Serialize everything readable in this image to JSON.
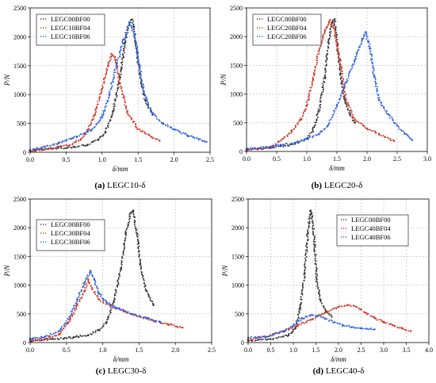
{
  "chart_data": [
    {
      "type": "scatter",
      "caption": "(a) LEGC10-δ",
      "caption_bold": "(a)",
      "caption_rest": "LEGC10-δ",
      "xlabel": "δ/mm",
      "ylabel": "P/N",
      "xlim": [
        0,
        2.5
      ],
      "ylim": [
        0,
        2500
      ],
      "xticks": [
        "0.0",
        "0.5",
        "1.0",
        "1.5",
        "2.0",
        "2.5"
      ],
      "yticks": [
        "0",
        "500",
        "1000",
        "1500",
        "2000",
        "2500"
      ],
      "grid": true,
      "legend_position": "top-left",
      "series": [
        {
          "name": "LEGC00BF00",
          "color": "#333333",
          "points": [
            [
              0,
              30
            ],
            [
              0.3,
              60
            ],
            [
              0.6,
              90
            ],
            [
              0.8,
              130
            ],
            [
              0.95,
              220
            ],
            [
              1.05,
              350
            ],
            [
              1.15,
              700
            ],
            [
              1.25,
              1300
            ],
            [
              1.32,
              1900
            ],
            [
              1.38,
              2250
            ],
            [
              1.42,
              2300
            ],
            [
              1.47,
              1900
            ],
            [
              1.52,
              1350
            ],
            [
              1.6,
              900
            ],
            [
              1.7,
              650
            ]
          ]
        },
        {
          "name": "LEGC10BF04",
          "color": "#d23b2a",
          "points": [
            [
              0,
              20
            ],
            [
              0.3,
              70
            ],
            [
              0.55,
              120
            ],
            [
              0.7,
              220
            ],
            [
              0.8,
              380
            ],
            [
              0.9,
              650
            ],
            [
              1.0,
              1100
            ],
            [
              1.08,
              1500
            ],
            [
              1.13,
              1700
            ],
            [
              1.18,
              1650
            ],
            [
              1.25,
              1200
            ],
            [
              1.35,
              700
            ],
            [
              1.5,
              400
            ],
            [
              1.65,
              300
            ],
            [
              1.8,
              200
            ]
          ]
        },
        {
          "name": "LEGC10BF06",
          "color": "#2a5fe0",
          "points": [
            [
              0,
              40
            ],
            [
              0.2,
              90
            ],
            [
              0.4,
              160
            ],
            [
              0.6,
              250
            ],
            [
              0.75,
              320
            ],
            [
              0.85,
              380
            ],
            [
              1.0,
              600
            ],
            [
              1.1,
              1000
            ],
            [
              1.2,
              1500
            ],
            [
              1.3,
              1950
            ],
            [
              1.38,
              2250
            ],
            [
              1.45,
              2050
            ],
            [
              1.5,
              1650
            ],
            [
              1.58,
              1050
            ],
            [
              1.68,
              700
            ],
            [
              1.85,
              500
            ],
            [
              2.0,
              400
            ],
            [
              2.2,
              280
            ],
            [
              2.45,
              180
            ]
          ]
        }
      ]
    },
    {
      "type": "scatter",
      "caption": "(b) LEGC20-δ",
      "caption_bold": "(b)",
      "caption_rest": "LEGC20-δ",
      "xlabel": "δ/mm",
      "ylabel": "P/N",
      "xlim": [
        0,
        3.0
      ],
      "ylim": [
        0,
        2500
      ],
      "xticks": [
        "0.0",
        "0.5",
        "1.0",
        "1.5",
        "2.0",
        "2.5",
        "3.0"
      ],
      "yticks": [
        "0",
        "500",
        "1000",
        "1500",
        "2000",
        "2500"
      ],
      "grid": true,
      "legend_position": "top-left",
      "series": [
        {
          "name": "LEGC00BF00",
          "color": "#333333",
          "points": [
            [
              0,
              30
            ],
            [
              0.4,
              60
            ],
            [
              0.8,
              130
            ],
            [
              1.0,
              220
            ],
            [
              1.1,
              350
            ],
            [
              1.2,
              700
            ],
            [
              1.3,
              1300
            ],
            [
              1.36,
              1900
            ],
            [
              1.42,
              2250
            ],
            [
              1.46,
              2300
            ],
            [
              1.5,
              1900
            ],
            [
              1.56,
              1350
            ],
            [
              1.63,
              900
            ],
            [
              1.72,
              650
            ],
            [
              1.8,
              500
            ]
          ]
        },
        {
          "name": "LEGC20BF04",
          "color": "#d23b2a",
          "points": [
            [
              0,
              20
            ],
            [
              0.4,
              80
            ],
            [
              0.6,
              220
            ],
            [
              0.75,
              350
            ],
            [
              0.9,
              550
            ],
            [
              1.0,
              800
            ],
            [
              1.1,
              1250
            ],
            [
              1.2,
              1750
            ],
            [
              1.3,
              2100
            ],
            [
              1.38,
              2280
            ],
            [
              1.45,
              2150
            ],
            [
              1.55,
              1600
            ],
            [
              1.65,
              900
            ],
            [
              1.8,
              550
            ],
            [
              2.0,
              400
            ],
            [
              2.2,
              300
            ],
            [
              2.45,
              180
            ]
          ]
        },
        {
          "name": "LEGC20BF06",
          "color": "#2a5fe0",
          "points": [
            [
              0,
              40
            ],
            [
              0.4,
              80
            ],
            [
              0.8,
              150
            ],
            [
              1.0,
              220
            ],
            [
              1.2,
              300
            ],
            [
              1.35,
              450
            ],
            [
              1.5,
              800
            ],
            [
              1.65,
              1200
            ],
            [
              1.8,
              1600
            ],
            [
              1.92,
              1950
            ],
            [
              1.98,
              2080
            ],
            [
              2.05,
              1800
            ],
            [
              2.12,
              1300
            ],
            [
              2.2,
              900
            ],
            [
              2.35,
              650
            ],
            [
              2.5,
              450
            ],
            [
              2.65,
              300
            ],
            [
              2.75,
              200
            ]
          ]
        }
      ]
    },
    {
      "type": "scatter",
      "caption": "(c) LEGC30-δ",
      "caption_bold": "(c)",
      "caption_rest": "LEGC30-δ",
      "xlabel": "δ/mm",
      "ylabel": "P/N",
      "xlim": [
        0,
        2.5
      ],
      "ylim": [
        0,
        2500
      ],
      "xticks": [
        "0.0",
        "0.5",
        "1.0",
        "1.5",
        "2.0",
        "2.5"
      ],
      "yticks": [
        "0",
        "500",
        "1000",
        "1500",
        "2000",
        "2500"
      ],
      "grid": true,
      "legend_position": "top-left",
      "series": [
        {
          "name": "LEGC00BF00",
          "color": "#333333",
          "points": [
            [
              0,
              30
            ],
            [
              0.3,
              60
            ],
            [
              0.6,
              90
            ],
            [
              0.8,
              130
            ],
            [
              0.95,
              220
            ],
            [
              1.05,
              350
            ],
            [
              1.15,
              700
            ],
            [
              1.25,
              1300
            ],
            [
              1.32,
              1900
            ],
            [
              1.38,
              2250
            ],
            [
              1.42,
              2300
            ],
            [
              1.47,
              1900
            ],
            [
              1.52,
              1350
            ],
            [
              1.6,
              900
            ],
            [
              1.7,
              650
            ]
          ]
        },
        {
          "name": "LEGC30BF04",
          "color": "#d23b2a",
          "points": [
            [
              0,
              30
            ],
            [
              0.2,
              60
            ],
            [
              0.4,
              150
            ],
            [
              0.55,
              400
            ],
            [
              0.65,
              650
            ],
            [
              0.75,
              900
            ],
            [
              0.8,
              1100
            ],
            [
              0.85,
              950
            ],
            [
              0.95,
              750
            ],
            [
              1.1,
              650
            ],
            [
              1.3,
              550
            ],
            [
              1.5,
              450
            ],
            [
              1.7,
              380
            ],
            [
              1.9,
              320
            ],
            [
              2.1,
              260
            ]
          ]
        },
        {
          "name": "LEGC30BF06",
          "color": "#2a5fe0",
          "points": [
            [
              0,
              60
            ],
            [
              0.2,
              100
            ],
            [
              0.4,
              200
            ],
            [
              0.55,
              450
            ],
            [
              0.65,
              750
            ],
            [
              0.75,
              1050
            ],
            [
              0.83,
              1250
            ],
            [
              0.88,
              1100
            ],
            [
              0.95,
              850
            ],
            [
              1.05,
              700
            ],
            [
              1.2,
              600
            ],
            [
              1.4,
              500
            ],
            [
              1.6,
              430
            ],
            [
              1.8,
              350
            ]
          ]
        }
      ]
    },
    {
      "type": "scatter",
      "caption": "(d) LEGC40-δ",
      "caption_bold": "(d)",
      "caption_rest": "LEGC40-δ",
      "xlabel": "δ/mm",
      "ylabel": "P/N",
      "xlim": [
        0,
        4.0
      ],
      "ylim": [
        0,
        2500
      ],
      "xticks": [
        "0.0",
        "0.5",
        "1.0",
        "1.5",
        "2.0",
        "2.5",
        "3.0",
        "3.5",
        "4.0"
      ],
      "yticks": [
        "0",
        "500",
        "1000",
        "1500",
        "2000",
        "2500"
      ],
      "grid": true,
      "legend_position": "top-right",
      "series": [
        {
          "name": "LEGC00BF00",
          "color": "#333333",
          "points": [
            [
              0,
              30
            ],
            [
              0.5,
              60
            ],
            [
              0.9,
              130
            ],
            [
              1.05,
              250
            ],
            [
              1.15,
              600
            ],
            [
              1.25,
              1200
            ],
            [
              1.32,
              1900
            ],
            [
              1.38,
              2300
            ],
            [
              1.42,
              2200
            ],
            [
              1.47,
              1700
            ],
            [
              1.52,
              1100
            ],
            [
              1.6,
              750
            ],
            [
              1.72,
              550
            ],
            [
              1.85,
              450
            ]
          ]
        },
        {
          "name": "LEGC40BF04",
          "color": "#d23b2a",
          "points": [
            [
              0,
              50
            ],
            [
              0.4,
              100
            ],
            [
              0.8,
              200
            ],
            [
              1.1,
              300
            ],
            [
              1.4,
              400
            ],
            [
              1.7,
              520
            ],
            [
              2.0,
              620
            ],
            [
              2.2,
              650
            ],
            [
              2.4,
              620
            ],
            [
              2.6,
              520
            ],
            [
              2.8,
              430
            ],
            [
              3.0,
              360
            ],
            [
              3.2,
              300
            ],
            [
              3.4,
              250
            ],
            [
              3.6,
              200
            ]
          ]
        },
        {
          "name": "LEGC40BF06",
          "color": "#2a5fe0",
          "points": [
            [
              0,
              80
            ],
            [
              0.4,
              100
            ],
            [
              0.8,
              200
            ],
            [
              1.0,
              300
            ],
            [
              1.2,
              420
            ],
            [
              1.4,
              480
            ],
            [
              1.55,
              470
            ],
            [
              1.7,
              420
            ],
            [
              1.9,
              350
            ],
            [
              2.1,
              300
            ],
            [
              2.3,
              270
            ],
            [
              2.5,
              250
            ],
            [
              2.8,
              230
            ]
          ]
        }
      ]
    }
  ]
}
